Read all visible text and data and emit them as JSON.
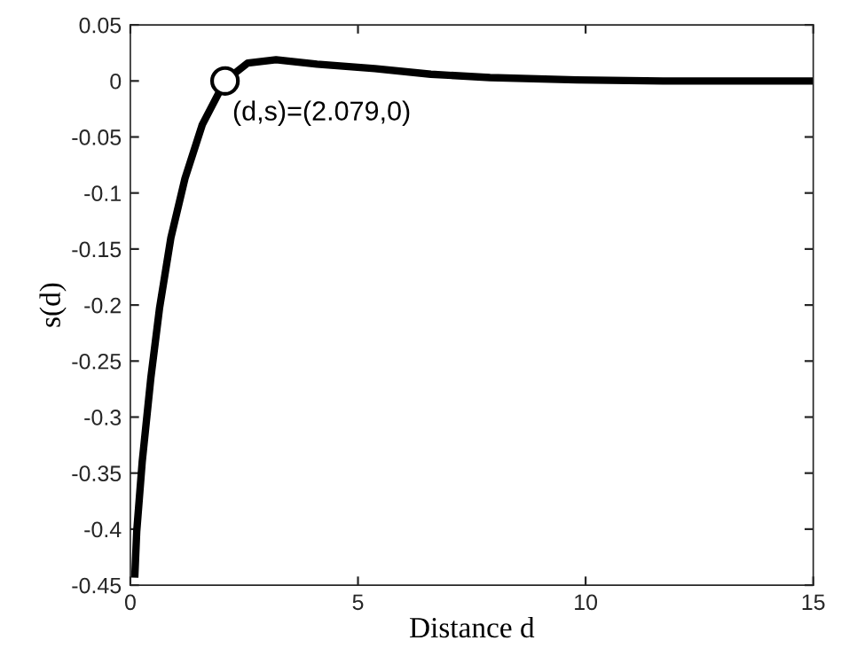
{
  "chart_data": {
    "type": "line",
    "xlabel": "Distance d",
    "ylabel": "s(d)",
    "xlim": [
      0,
      15
    ],
    "ylim": [
      -0.45,
      0.05
    ],
    "xticks": [
      0,
      5,
      10,
      15
    ],
    "yticks": [
      -0.45,
      -0.4,
      -0.35,
      -0.3,
      -0.25,
      -0.2,
      -0.15,
      -0.1,
      -0.05,
      0,
      0.05
    ],
    "grid": false,
    "legend": false,
    "series": [
      {
        "color": "#000000",
        "marker": "none",
        "line_style": "solid",
        "x": [
          0.1,
          0.14,
          0.26,
          0.45,
          0.64,
          0.89,
          1.2,
          1.58,
          2.079,
          2.58,
          3.2,
          4.1,
          5.37,
          6.6,
          7.9,
          9.8,
          11.7,
          15
        ],
        "values": [
          -0.44,
          -0.402,
          -0.34,
          -0.265,
          -0.203,
          -0.14,
          -0.087,
          -0.039,
          0,
          0.016,
          0.019,
          0.015,
          0.011,
          0.006,
          0.003,
          0.001,
          0,
          0
        ]
      },
      {
        "type": "scatter",
        "color": "#000000",
        "marker": "circle",
        "x": [
          2.079
        ],
        "values": [
          0
        ]
      }
    ],
    "annotations": [
      {
        "text": "(d,s)=(2.079,0)",
        "x": 2.079,
        "y": 0
      }
    ]
  }
}
